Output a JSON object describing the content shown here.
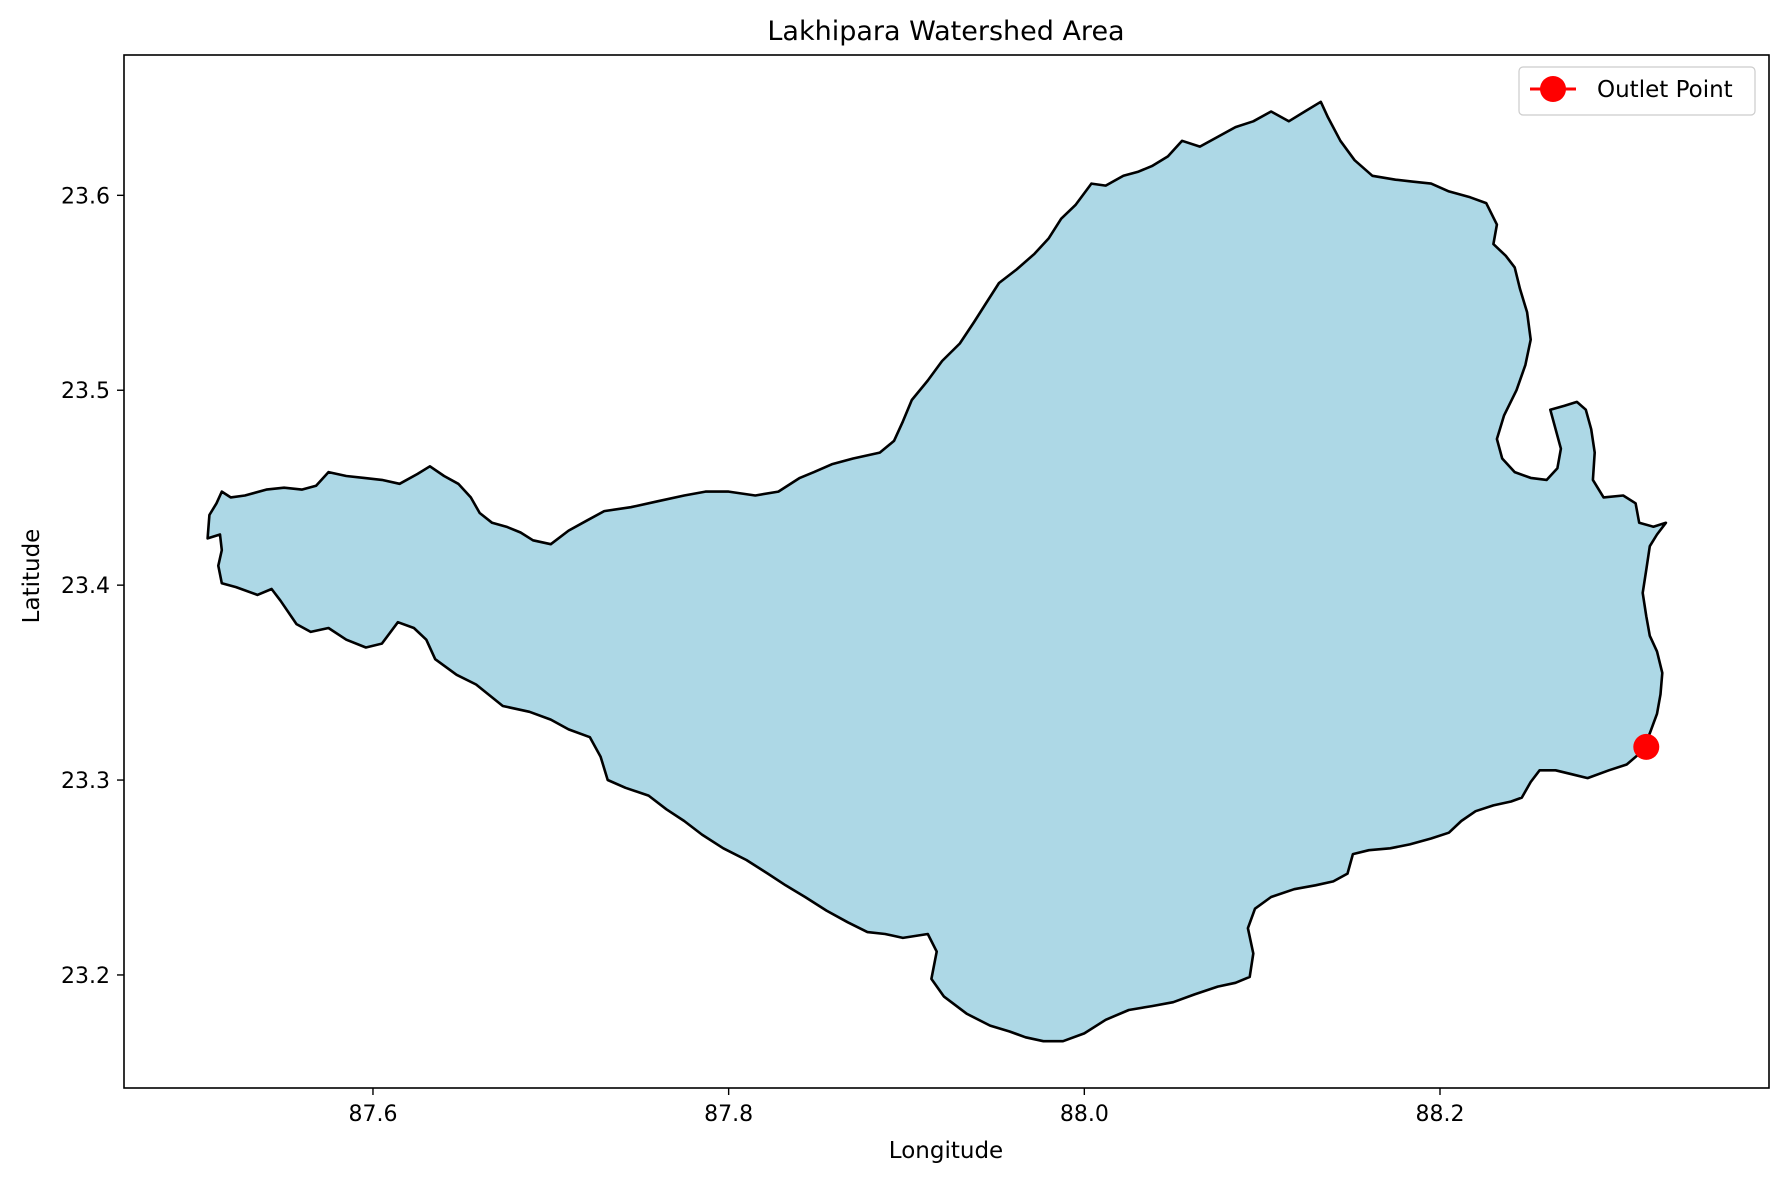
{
  "chart_data": {
    "type": "map",
    "title": "Lakhipara Watershed Area",
    "xlabel": "Longitude",
    "ylabel": "Latitude",
    "xlim": [
      87.46,
      88.385
    ],
    "ylim": [
      23.142,
      23.672
    ],
    "xticks": [
      87.6,
      87.8,
      88.0,
      88.2
    ],
    "xtick_labels": [
      "87.6",
      "87.8",
      "88.0",
      "88.2"
    ],
    "yticks": [
      23.2,
      23.3,
      23.4,
      23.5,
      23.6
    ],
    "ytick_labels": [
      "23.2",
      "23.3",
      "23.4",
      "23.5",
      "23.6"
    ],
    "watershed": {
      "fill_color": "#add8e6",
      "edge_color": "#000000",
      "boundary": [
        [
          87.507,
          23.424
        ],
        [
          87.514,
          23.426
        ],
        [
          87.515,
          23.418
        ],
        [
          87.513,
          23.41
        ],
        [
          87.515,
          23.401
        ],
        [
          87.523,
          23.399
        ],
        [
          87.535,
          23.395
        ],
        [
          87.543,
          23.398
        ],
        [
          87.548,
          23.392
        ],
        [
          87.557,
          23.38
        ],
        [
          87.565,
          23.376
        ],
        [
          87.575,
          23.378
        ],
        [
          87.585,
          23.372
        ],
        [
          87.596,
          23.368
        ],
        [
          87.605,
          23.37
        ],
        [
          87.614,
          23.381
        ],
        [
          87.623,
          23.378
        ],
        [
          87.63,
          23.372
        ],
        [
          87.635,
          23.362
        ],
        [
          87.647,
          23.354
        ],
        [
          87.658,
          23.349
        ],
        [
          87.673,
          23.338
        ],
        [
          87.688,
          23.335
        ],
        [
          87.7,
          23.331
        ],
        [
          87.71,
          23.326
        ],
        [
          87.722,
          23.322
        ],
        [
          87.728,
          23.312
        ],
        [
          87.732,
          23.3
        ],
        [
          87.742,
          23.296
        ],
        [
          87.755,
          23.292
        ],
        [
          87.765,
          23.285
        ],
        [
          87.775,
          23.279
        ],
        [
          87.785,
          23.272
        ],
        [
          87.797,
          23.265
        ],
        [
          87.81,
          23.259
        ],
        [
          87.822,
          23.252
        ],
        [
          87.832,
          23.246
        ],
        [
          87.843,
          23.24
        ],
        [
          87.855,
          23.233
        ],
        [
          87.867,
          23.227
        ],
        [
          87.878,
          23.222
        ],
        [
          87.888,
          23.221
        ],
        [
          87.898,
          23.219
        ],
        [
          87.912,
          23.221
        ],
        [
          87.917,
          23.212
        ],
        [
          87.914,
          23.198
        ],
        [
          87.921,
          23.189
        ],
        [
          87.934,
          23.18
        ],
        [
          87.947,
          23.174
        ],
        [
          87.958,
          23.171
        ],
        [
          87.967,
          23.168
        ],
        [
          87.977,
          23.166
        ],
        [
          87.988,
          23.166
        ],
        [
          88.0,
          23.17
        ],
        [
          88.012,
          23.177
        ],
        [
          88.025,
          23.182
        ],
        [
          88.038,
          23.184
        ],
        [
          88.05,
          23.186
        ],
        [
          88.062,
          23.19
        ],
        [
          88.075,
          23.194
        ],
        [
          88.085,
          23.196
        ],
        [
          88.093,
          23.199
        ],
        [
          88.095,
          23.211
        ],
        [
          88.092,
          23.224
        ],
        [
          88.096,
          23.234
        ],
        [
          88.105,
          23.24
        ],
        [
          88.118,
          23.244
        ],
        [
          88.13,
          23.246
        ],
        [
          88.14,
          23.248
        ],
        [
          88.148,
          23.252
        ],
        [
          88.151,
          23.262
        ],
        [
          88.16,
          23.264
        ],
        [
          88.172,
          23.265
        ],
        [
          88.183,
          23.267
        ],
        [
          88.195,
          23.27
        ],
        [
          88.205,
          23.273
        ],
        [
          88.212,
          23.279
        ],
        [
          88.22,
          23.284
        ],
        [
          88.23,
          23.287
        ],
        [
          88.24,
          23.289
        ],
        [
          88.246,
          23.291
        ],
        [
          88.251,
          23.299
        ],
        [
          88.256,
          23.305
        ],
        [
          88.265,
          23.305
        ],
        [
          88.274,
          23.303
        ],
        [
          88.283,
          23.301
        ],
        [
          88.295,
          23.305
        ],
        [
          88.305,
          23.308
        ],
        [
          88.314,
          23.315
        ],
        [
          88.318,
          23.324
        ],
        [
          88.322,
          23.334
        ],
        [
          88.324,
          23.344
        ],
        [
          88.325,
          23.355
        ],
        [
          88.322,
          23.366
        ],
        [
          88.318,
          23.374
        ],
        [
          88.316,
          23.384
        ],
        [
          88.314,
          23.396
        ],
        [
          88.316,
          23.408
        ],
        [
          88.318,
          23.42
        ],
        [
          88.322,
          23.426
        ],
        [
          88.327,
          23.432
        ],
        [
          88.32,
          23.43
        ],
        [
          88.312,
          23.432
        ],
        [
          88.31,
          23.442
        ],
        [
          88.303,
          23.446
        ],
        [
          88.292,
          23.445
        ],
        [
          88.286,
          23.454
        ],
        [
          88.287,
          23.468
        ],
        [
          88.285,
          23.48
        ],
        [
          88.282,
          23.49
        ],
        [
          88.277,
          23.494
        ],
        [
          88.27,
          23.492
        ],
        [
          88.262,
          23.49
        ],
        [
          88.265,
          23.48
        ],
        [
          88.268,
          23.47
        ],
        [
          88.266,
          23.46
        ],
        [
          88.26,
          23.454
        ],
        [
          88.251,
          23.455
        ],
        [
          88.242,
          23.458
        ],
        [
          88.235,
          23.465
        ],
        [
          88.232,
          23.475
        ],
        [
          88.236,
          23.487
        ],
        [
          88.243,
          23.5
        ],
        [
          88.248,
          23.513
        ],
        [
          88.251,
          23.526
        ],
        [
          88.249,
          23.54
        ],
        [
          88.245,
          23.552
        ],
        [
          88.242,
          23.563
        ],
        [
          88.237,
          23.569
        ],
        [
          88.23,
          23.575
        ],
        [
          88.232,
          23.585
        ],
        [
          88.226,
          23.596
        ],
        [
          88.217,
          23.599
        ],
        [
          88.205,
          23.602
        ],
        [
          88.195,
          23.606
        ],
        [
          88.185,
          23.607
        ],
        [
          88.175,
          23.608
        ],
        [
          88.162,
          23.61
        ],
        [
          88.152,
          23.618
        ],
        [
          88.144,
          23.628
        ],
        [
          88.137,
          23.64
        ],
        [
          88.133,
          23.648
        ],
        [
          88.124,
          23.643
        ],
        [
          88.115,
          23.638
        ],
        [
          88.105,
          23.643
        ],
        [
          88.095,
          23.638
        ],
        [
          88.085,
          23.635
        ],
        [
          88.075,
          23.63
        ],
        [
          88.065,
          23.625
        ],
        [
          88.055,
          23.628
        ],
        [
          88.047,
          23.62
        ],
        [
          88.038,
          23.615
        ],
        [
          88.03,
          23.612
        ],
        [
          88.022,
          23.61
        ],
        [
          88.012,
          23.605
        ],
        [
          88.004,
          23.606
        ],
        [
          87.995,
          23.595
        ],
        [
          87.987,
          23.588
        ],
        [
          87.98,
          23.578
        ],
        [
          87.972,
          23.57
        ],
        [
          87.962,
          23.562
        ],
        [
          87.952,
          23.555
        ],
        [
          87.945,
          23.545
        ],
        [
          87.938,
          23.535
        ],
        [
          87.93,
          23.524
        ],
        [
          87.92,
          23.515
        ],
        [
          87.912,
          23.505
        ],
        [
          87.903,
          23.495
        ],
        [
          87.898,
          23.484
        ],
        [
          87.893,
          23.474
        ],
        [
          87.885,
          23.468
        ],
        [
          87.87,
          23.465
        ],
        [
          87.858,
          23.462
        ],
        [
          87.848,
          23.458
        ],
        [
          87.84,
          23.455
        ],
        [
          87.828,
          23.448
        ],
        [
          87.815,
          23.446
        ],
        [
          87.8,
          23.448
        ],
        [
          87.787,
          23.448
        ],
        [
          87.775,
          23.446
        ],
        [
          87.76,
          23.443
        ],
        [
          87.745,
          23.44
        ],
        [
          87.73,
          23.438
        ],
        [
          87.72,
          23.433
        ],
        [
          87.71,
          23.428
        ],
        [
          87.7,
          23.421
        ],
        [
          87.69,
          23.423
        ],
        [
          87.683,
          23.427
        ],
        [
          87.675,
          23.43
        ],
        [
          87.667,
          23.432
        ],
        [
          87.66,
          23.437
        ],
        [
          87.655,
          23.445
        ],
        [
          87.648,
          23.452
        ],
        [
          87.64,
          23.456
        ],
        [
          87.632,
          23.461
        ],
        [
          87.625,
          23.457
        ],
        [
          87.615,
          23.452
        ],
        [
          87.605,
          23.454
        ],
        [
          87.595,
          23.455
        ],
        [
          87.585,
          23.456
        ],
        [
          87.575,
          23.458
        ],
        [
          87.568,
          23.451
        ],
        [
          87.56,
          23.449
        ],
        [
          87.55,
          23.45
        ],
        [
          87.54,
          23.449
        ],
        [
          87.528,
          23.446
        ],
        [
          87.52,
          23.445
        ],
        [
          87.515,
          23.448
        ],
        [
          87.512,
          23.442
        ],
        [
          87.508,
          23.436
        ],
        [
          87.507,
          23.424
        ]
      ]
    },
    "outlet": {
      "label": "Outlet Point",
      "lon": 88.316,
      "lat": 23.317,
      "color": "#ff0000"
    },
    "legend": {
      "position": "top-right"
    }
  }
}
